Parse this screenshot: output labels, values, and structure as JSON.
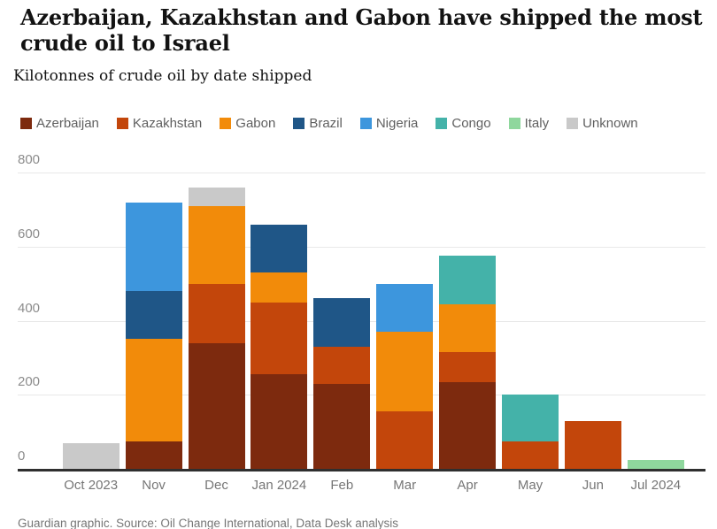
{
  "header": {
    "title": "Azerbaijan, Kazakhstan and Gabon have shipped the most crude oil to Israel",
    "subtitle": "Kilotonnes of crude oil by date shipped"
  },
  "footer": {
    "source": "Guardian graphic. Source: Oil Change International, Data Desk analysis"
  },
  "chart_data": {
    "type": "bar",
    "stacked": true,
    "title": "Azerbaijan, Kazakhstan and Gabon have shipped the most crude oil to Israel",
    "subtitle": "Kilotonnes of crude oil by date shipped",
    "xlabel": "",
    "ylabel": "Kilotonnes of crude oil",
    "ylim": [
      0,
      800
    ],
    "yticks": [
      0,
      200,
      400,
      600,
      800
    ],
    "grid": true,
    "legend_position": "top",
    "categories": [
      "Oct 2023",
      "Nov",
      "Dec",
      "Jan 2024",
      "Feb",
      "Mar",
      "Apr",
      "May",
      "Jun",
      "Jul 2024"
    ],
    "series": [
      {
        "name": "Azerbaijan",
        "color": "#7d2a0e",
        "values": [
          0,
          75,
          340,
          255,
          230,
          0,
          235,
          0,
          0,
          0
        ]
      },
      {
        "name": "Kazakhstan",
        "color": "#c3460b",
        "values": [
          0,
          0,
          160,
          195,
          100,
          155,
          80,
          75,
          130,
          0
        ]
      },
      {
        "name": "Gabon",
        "color": "#f28b0a",
        "values": [
          0,
          275,
          210,
          80,
          0,
          215,
          130,
          0,
          0,
          0
        ]
      },
      {
        "name": "Brazil",
        "color": "#1f5687",
        "values": [
          0,
          130,
          0,
          130,
          130,
          0,
          0,
          0,
          0,
          0
        ]
      },
      {
        "name": "Nigeria",
        "color": "#3d96dd",
        "values": [
          0,
          240,
          0,
          0,
          0,
          130,
          0,
          0,
          0,
          0
        ]
      },
      {
        "name": "Congo",
        "color": "#44b2a9",
        "values": [
          0,
          0,
          0,
          0,
          0,
          0,
          130,
          125,
          0,
          0
        ]
      },
      {
        "name": "Italy",
        "color": "#8fd79d",
        "values": [
          0,
          0,
          0,
          0,
          0,
          0,
          0,
          0,
          0,
          25
        ]
      },
      {
        "name": "Unknown",
        "color": "#c9c9c9",
        "values": [
          70,
          0,
          50,
          0,
          0,
          0,
          0,
          0,
          0,
          0
        ]
      }
    ],
    "totals": [
      70,
      720,
      760,
      660,
      460,
      500,
      575,
      200,
      130,
      25
    ]
  }
}
